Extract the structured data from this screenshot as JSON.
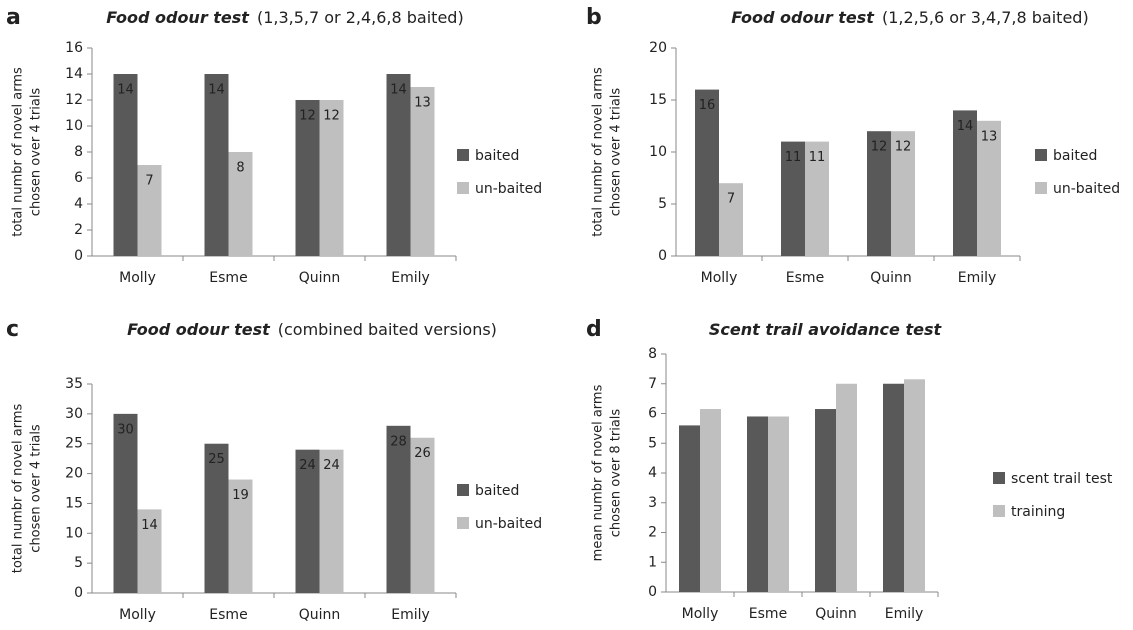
{
  "chart_data": [
    {
      "type": "bar",
      "panel_label": "a",
      "title": "Food odour test",
      "title_note": "(1,3,5,7 or 2,4,6,8 baited)",
      "ylabel": [
        "total  numbr of novel arms",
        "chosen over 4 trials"
      ],
      "categories": [
        "Molly",
        "Esme",
        "Quinn",
        "Emily"
      ],
      "series": [
        {
          "name": "baited",
          "color": "#595959",
          "values": [
            14,
            14,
            12,
            14
          ]
        },
        {
          "name": "un-baited",
          "color": "#bfbfbf",
          "values": [
            7,
            8,
            12,
            13
          ]
        }
      ],
      "ylim": [
        0,
        16
      ],
      "yticks": [
        0,
        2,
        4,
        6,
        8,
        10,
        12,
        14,
        16
      ],
      "show_values": true,
      "legend": "right"
    },
    {
      "type": "bar",
      "panel_label": "b",
      "title": "Food odour test",
      "title_note": "(1,2,5,6 or 3,4,7,8 baited)",
      "ylabel": [
        "total  numbr of novel arms",
        "chosen over 4 trials"
      ],
      "categories": [
        "Molly",
        "Esme",
        "Quinn",
        "Emily"
      ],
      "series": [
        {
          "name": "baited",
          "color": "#595959",
          "values": [
            16,
            11,
            12,
            14
          ]
        },
        {
          "name": "un-baited",
          "color": "#bfbfbf",
          "values": [
            7,
            11,
            12,
            13
          ]
        }
      ],
      "ylim": [
        0,
        20
      ],
      "yticks": [
        0,
        5,
        10,
        15,
        20
      ],
      "show_values": true,
      "legend": "right"
    },
    {
      "type": "bar",
      "panel_label": "c",
      "title": "Food odour test",
      "title_note": "(combined baited versions)",
      "ylabel": [
        "total  numbr of novel arms",
        "chosen over 4 trials"
      ],
      "categories": [
        "Molly",
        "Esme",
        "Quinn",
        "Emily"
      ],
      "series": [
        {
          "name": "baited",
          "color": "#595959",
          "values": [
            30,
            25,
            24,
            28
          ]
        },
        {
          "name": "un-baited",
          "color": "#bfbfbf",
          "values": [
            14,
            19,
            24,
            26
          ]
        }
      ],
      "ylim": [
        0,
        35
      ],
      "yticks": [
        0,
        5,
        10,
        15,
        20,
        25,
        30,
        35
      ],
      "show_values": true,
      "legend": "right"
    },
    {
      "type": "bar",
      "panel_label": "d",
      "title": "Scent trail avoidance test",
      "ylabel": [
        "mean  numbr of novel arms",
        "chosen over 8  trials"
      ],
      "categories": [
        "Molly",
        "Esme",
        "Quinn",
        "Emily"
      ],
      "series": [
        {
          "name": "scent trail test",
          "color": "#595959",
          "values": [
            5.6,
            5.9,
            6.15,
            7.0
          ]
        },
        {
          "name": "training",
          "color": "#bfbfbf",
          "values": [
            6.15,
            5.9,
            7.0,
            7.15
          ]
        }
      ],
      "ylim": [
        0,
        8
      ],
      "yticks": [
        0,
        1,
        2,
        3,
        4,
        5,
        6,
        7,
        8
      ],
      "show_values": false,
      "legend": "right"
    }
  ]
}
